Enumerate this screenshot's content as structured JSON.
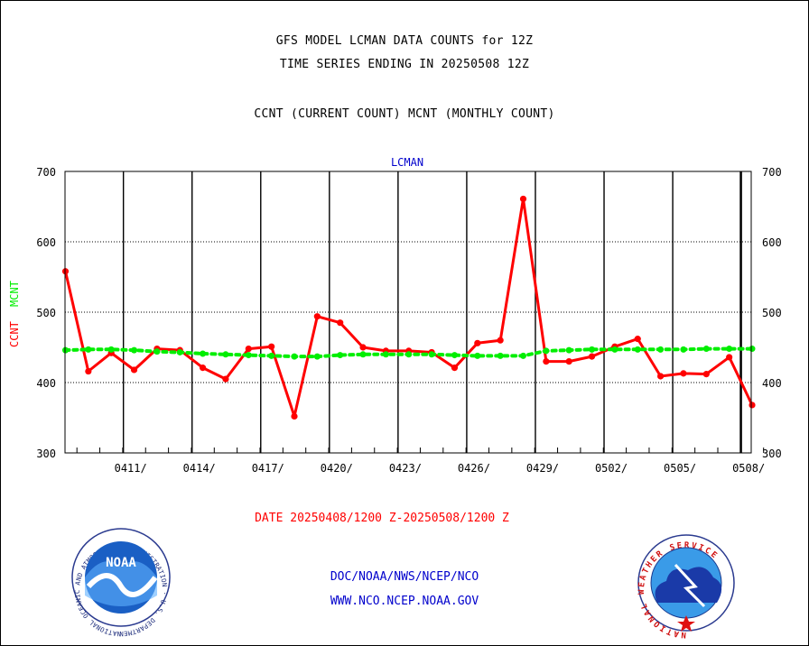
{
  "header": {
    "title_line1": "GFS MODEL LCMAN DATA COUNTS for 12Z",
    "title_line2": "TIME SERIES ENDING IN 20250508 12Z",
    "subtitle": "CCNT (CURRENT COUNT) MCNT (MONTHLY COUNT)"
  },
  "chart_data": {
    "type": "line",
    "title": "LCMAN",
    "ylabel_ccnt": "CCNT",
    "ylabel_mcnt": "MCNT",
    "xlabel": "DATE 20250408/1200 Z-20250508/1200 Z",
    "x_start_day": "20250408",
    "n_days": 31,
    "ylim": [
      300,
      700
    ],
    "yticks": [
      300,
      400,
      500,
      600,
      700
    ],
    "xtick_labels": [
      "0411/",
      "0414/",
      "0417/",
      "0420/",
      "0423/",
      "0426/",
      "0429/",
      "0502/",
      "0505/",
      "0508/"
    ],
    "grid": true,
    "series": [
      {
        "name": "CCNT",
        "color": "#ff0000",
        "values": [
          558,
          416,
          442,
          418,
          448,
          446,
          421,
          405,
          448,
          451,
          352,
          494,
          485,
          450,
          445,
          445,
          443,
          421,
          456,
          460,
          661,
          430,
          430,
          437,
          451,
          462,
          409,
          413,
          412,
          436,
          368
        ]
      },
      {
        "name": "MCNT",
        "color": "#00ee00",
        "values": [
          446,
          447,
          447,
          446,
          444,
          443,
          441,
          440,
          439,
          438,
          437,
          437,
          439,
          440,
          440,
          440,
          440,
          439,
          438,
          438,
          438,
          445,
          446,
          447,
          447,
          447,
          447,
          447,
          448,
          448,
          448
        ]
      }
    ]
  },
  "footer": {
    "org_line": "DOC/NOAA/NWS/NCEP/NCO",
    "url_line": "WWW.NCO.NCEP.NOAA.GOV",
    "logo_left": "noaa-logo",
    "logo_right": "national-weather-service-logo",
    "noaa_logo_text": "NOAA",
    "noaa_ring_text": "NATIONAL OCEANIC AND ATMOSPHERIC ADMINISTRATION · U.S. DEPARTMENT OF COMMERCE ·",
    "nws_ring_text": "NATIONAL WEATHER SERVICE"
  }
}
